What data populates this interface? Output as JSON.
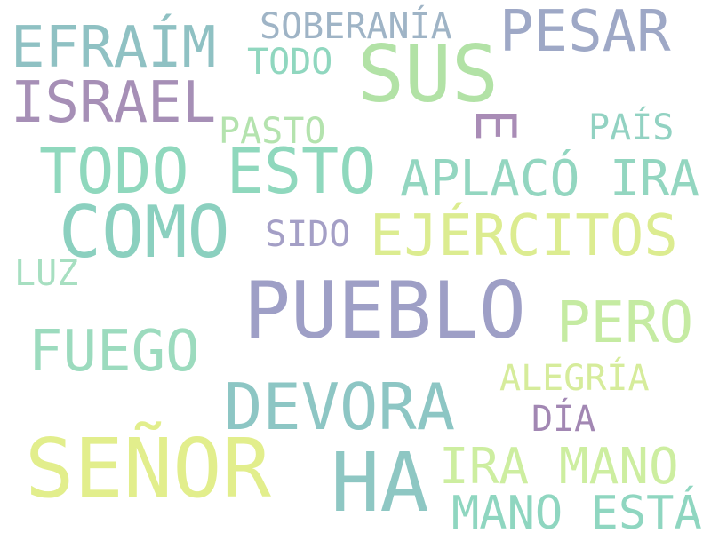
{
  "words": [
    {
      "text": "EFRAÍM",
      "color": "#8fc1c3"
    },
    {
      "text": "SOBERANÍA",
      "color": "#9fb4c6"
    },
    {
      "text": "PESAR",
      "color": "#9ea8c6"
    },
    {
      "text": "SUS",
      "color": "#b2e2a6"
    },
    {
      "text": "TODO",
      "color": "#90d7bf"
    },
    {
      "text": "ISRAEL",
      "color": "#a68fb6"
    },
    {
      "text": "E",
      "color": "#a98cb6"
    },
    {
      "text": "PASTO",
      "color": "#b4e3ae"
    },
    {
      "text": "PAÍS",
      "color": "#92d2c2"
    },
    {
      "text": "TODO ESTO",
      "color": "#8fd8bd"
    },
    {
      "text": "APLACÓ IRA",
      "color": "#93d6c0"
    },
    {
      "text": "COMO",
      "color": "#8bd0bf"
    },
    {
      "text": "SIDO",
      "color": "#a49fc6"
    },
    {
      "text": "EJÉRCITOS",
      "color": "#dcec90"
    },
    {
      "text": "LUZ",
      "color": "#a7dfc1"
    },
    {
      "text": "PUEBLO",
      "color": "#9e9fc6"
    },
    {
      "text": "PERO",
      "color": "#c5eba2"
    },
    {
      "text": "FUEGO",
      "color": "#9cdbbe"
    },
    {
      "text": "DEVORA",
      "color": "#8dc6c4"
    },
    {
      "text": "ALEGRÍA",
      "color": "#d6ec9b"
    },
    {
      "text": "DÍA",
      "color": "#a287b3"
    },
    {
      "text": "SEÑOR",
      "color": "#e2ee8c"
    },
    {
      "text": "HA",
      "color": "#8ec7c3"
    },
    {
      "text": "IRA MANO",
      "color": "#cdeea0"
    },
    {
      "text": "MANO ESTÁ",
      "color": "#8fd6c0"
    }
  ]
}
